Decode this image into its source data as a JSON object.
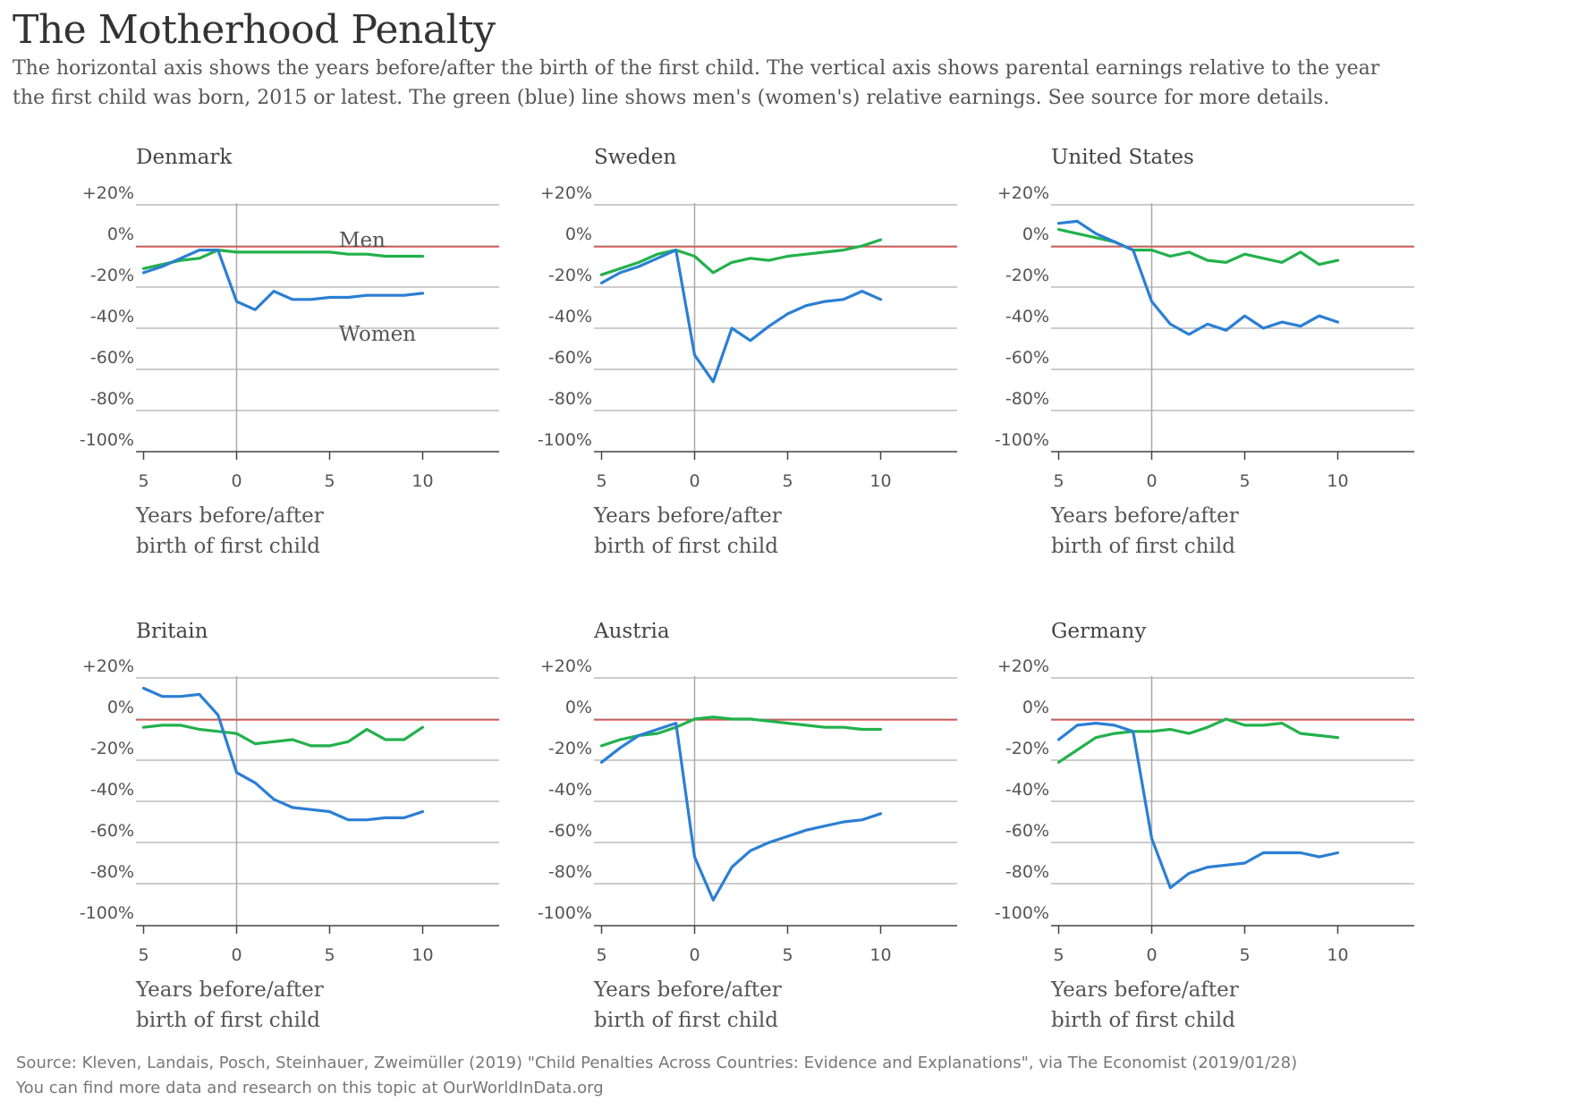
{
  "title": "The Motherhood Penalty",
  "subtitle": "The horizontal axis shows the years before/after the birth of the first child. The vertical axis shows parental earnings relative to the year the first child was born, 2015 or latest. The green (blue) line shows men's (women's) relative earnings. See source for more details.",
  "source_line1": "Source: Kleven, Landais, Posch, Steinhauer, Zweimüller (2019) \"Child Penalties Across Countries: Evidence and Explanations\", via The Economist (2019/01/28)",
  "source_line2": "You can find more data and research on this topic at OurWorldInData.org",
  "colors": {
    "men": "#22b14c",
    "women": "#2b7fd4",
    "reference": "#e53935",
    "grid": "#999999",
    "axis": "#444444"
  },
  "chart_data": [
    {
      "type": "line",
      "title": "Denmark",
      "xlabel": "Years before/after birth of first child",
      "x_ticks": [
        "5",
        "0",
        "5",
        "10"
      ],
      "y_ticks": [
        "+20%",
        "0%",
        "-20%",
        "-40%",
        "-60%",
        "-80%",
        "-100%"
      ],
      "xlim": [
        -5,
        14
      ],
      "ylim": [
        -100,
        20
      ],
      "labels": [
        "Men",
        "Women"
      ],
      "series": [
        {
          "name": "Men",
          "color": "#22b14c",
          "points": [
            [
              -5,
              -11
            ],
            [
              -4,
              -9
            ],
            [
              -3,
              -7
            ],
            [
              -2,
              -6
            ],
            [
              -1,
              -2
            ],
            [
              0,
              -3
            ],
            [
              1,
              -3
            ],
            [
              2,
              -3
            ],
            [
              3,
              -3
            ],
            [
              4,
              -3
            ],
            [
              5,
              -3
            ],
            [
              6,
              -4
            ],
            [
              7,
              -4
            ],
            [
              8,
              -5
            ],
            [
              9,
              -5
            ],
            [
              10,
              -5
            ]
          ]
        },
        {
          "name": "Women",
          "color": "#2b7fd4",
          "points": [
            [
              -5,
              -13
            ],
            [
              -4,
              -10
            ],
            [
              -3,
              -6
            ],
            [
              -2,
              -2
            ],
            [
              -1,
              -2
            ],
            [
              0,
              -27
            ],
            [
              1,
              -31
            ],
            [
              2,
              -22
            ],
            [
              3,
              -26
            ],
            [
              4,
              -26
            ],
            [
              5,
              -25
            ],
            [
              6,
              -25
            ],
            [
              7,
              -24
            ],
            [
              8,
              -24
            ],
            [
              9,
              -24
            ],
            [
              10,
              -23
            ]
          ]
        }
      ]
    },
    {
      "type": "line",
      "title": "Sweden",
      "xlabel": "Years before/after birth of first child",
      "x_ticks": [
        "5",
        "0",
        "5",
        "10"
      ],
      "y_ticks": [
        "+20%",
        "0%",
        "-20%",
        "-40%",
        "-60%",
        "-80%",
        "-100%"
      ],
      "xlim": [
        -5,
        14
      ],
      "ylim": [
        -100,
        20
      ],
      "series": [
        {
          "name": "Men",
          "color": "#22b14c",
          "points": [
            [
              -5,
              -14
            ],
            [
              -4,
              -11
            ],
            [
              -3,
              -8
            ],
            [
              -2,
              -4
            ],
            [
              -1,
              -2
            ],
            [
              0,
              -5
            ],
            [
              1,
              -13
            ],
            [
              2,
              -8
            ],
            [
              3,
              -6
            ],
            [
              4,
              -7
            ],
            [
              5,
              -5
            ],
            [
              6,
              -4
            ],
            [
              7,
              -3
            ],
            [
              8,
              -2
            ],
            [
              9,
              0
            ],
            [
              10,
              3
            ]
          ]
        },
        {
          "name": "Women",
          "color": "#2b7fd4",
          "points": [
            [
              -5,
              -18
            ],
            [
              -4,
              -13
            ],
            [
              -3,
              -10
            ],
            [
              -2,
              -6
            ],
            [
              -1,
              -2
            ],
            [
              0,
              -53
            ],
            [
              1,
              -66
            ],
            [
              2,
              -40
            ],
            [
              3,
              -46
            ],
            [
              4,
              -39
            ],
            [
              5,
              -33
            ],
            [
              6,
              -29
            ],
            [
              7,
              -27
            ],
            [
              8,
              -26
            ],
            [
              9,
              -22
            ],
            [
              10,
              -26
            ]
          ]
        }
      ]
    },
    {
      "type": "line",
      "title": "United States",
      "xlabel": "Years before/after birth of first child",
      "x_ticks": [
        "5",
        "0",
        "5",
        "10"
      ],
      "y_ticks": [
        "+20%",
        "0%",
        "-20%",
        "-40%",
        "-60%",
        "-80%",
        "-100%"
      ],
      "xlim": [
        -5,
        14
      ],
      "ylim": [
        -100,
        20
      ],
      "series": [
        {
          "name": "Men",
          "color": "#22b14c",
          "points": [
            [
              -5,
              8
            ],
            [
              -4,
              6
            ],
            [
              -3,
              4
            ],
            [
              -2,
              2
            ],
            [
              -1,
              -2
            ],
            [
              0,
              -2
            ],
            [
              1,
              -5
            ],
            [
              2,
              -3
            ],
            [
              3,
              -7
            ],
            [
              4,
              -8
            ],
            [
              5,
              -4
            ],
            [
              6,
              -6
            ],
            [
              7,
              -8
            ],
            [
              8,
              -3
            ],
            [
              9,
              -9
            ],
            [
              10,
              -7
            ]
          ]
        },
        {
          "name": "Women",
          "color": "#2b7fd4",
          "points": [
            [
              -5,
              11
            ],
            [
              -4,
              12
            ],
            [
              -3,
              6
            ],
            [
              -2,
              2
            ],
            [
              -1,
              -2
            ],
            [
              0,
              -27
            ],
            [
              1,
              -38
            ],
            [
              2,
              -43
            ],
            [
              3,
              -38
            ],
            [
              4,
              -41
            ],
            [
              5,
              -34
            ],
            [
              6,
              -40
            ],
            [
              7,
              -37
            ],
            [
              8,
              -39
            ],
            [
              9,
              -34
            ],
            [
              10,
              -37
            ]
          ]
        }
      ]
    },
    {
      "type": "line",
      "title": "Britain",
      "xlabel": "Years before/after birth of first child",
      "x_ticks": [
        "5",
        "0",
        "5",
        "10"
      ],
      "y_ticks": [
        "+20%",
        "0%",
        "-20%",
        "-40%",
        "-60%",
        "-80%",
        "-100%"
      ],
      "xlim": [
        -5,
        14
      ],
      "ylim": [
        -100,
        20
      ],
      "series": [
        {
          "name": "Men",
          "color": "#22b14c",
          "points": [
            [
              -5,
              -4
            ],
            [
              -4,
              -3
            ],
            [
              -3,
              -3
            ],
            [
              -2,
              -5
            ],
            [
              -1,
              -6
            ],
            [
              0,
              -7
            ],
            [
              1,
              -12
            ],
            [
              2,
              -11
            ],
            [
              3,
              -10
            ],
            [
              4,
              -13
            ],
            [
              5,
              -13
            ],
            [
              6,
              -11
            ],
            [
              7,
              -5
            ],
            [
              8,
              -10
            ],
            [
              9,
              -10
            ],
            [
              10,
              -4
            ]
          ]
        },
        {
          "name": "Women",
          "color": "#2b7fd4",
          "points": [
            [
              -5,
              15
            ],
            [
              -4,
              11
            ],
            [
              -3,
              11
            ],
            [
              -2,
              12
            ],
            [
              -1,
              2
            ],
            [
              0,
              -26
            ],
            [
              1,
              -31
            ],
            [
              2,
              -39
            ],
            [
              3,
              -43
            ],
            [
              4,
              -44
            ],
            [
              5,
              -45
            ],
            [
              6,
              -49
            ],
            [
              7,
              -49
            ],
            [
              8,
              -48
            ],
            [
              9,
              -48
            ],
            [
              10,
              -45
            ]
          ]
        }
      ]
    },
    {
      "type": "line",
      "title": "Austria",
      "xlabel": "Years before/after birth of first child",
      "x_ticks": [
        "5",
        "0",
        "5",
        "10"
      ],
      "y_ticks": [
        "+20%",
        "0%",
        "-20%",
        "-40%",
        "-60%",
        "-80%",
        "-100%"
      ],
      "xlim": [
        -5,
        14
      ],
      "ylim": [
        -100,
        20
      ],
      "series": [
        {
          "name": "Men",
          "color": "#22b14c",
          "points": [
            [
              -5,
              -13
            ],
            [
              -4,
              -10
            ],
            [
              -3,
              -8
            ],
            [
              -2,
              -7
            ],
            [
              -1,
              -4
            ],
            [
              0,
              0
            ],
            [
              1,
              1
            ],
            [
              2,
              0
            ],
            [
              3,
              0
            ],
            [
              4,
              -1
            ],
            [
              5,
              -2
            ],
            [
              6,
              -3
            ],
            [
              7,
              -4
            ],
            [
              8,
              -4
            ],
            [
              9,
              -5
            ],
            [
              10,
              -5
            ]
          ]
        },
        {
          "name": "Women",
          "color": "#2b7fd4",
          "points": [
            [
              -5,
              -21
            ],
            [
              -4,
              -14
            ],
            [
              -3,
              -8
            ],
            [
              -2,
              -5
            ],
            [
              -1,
              -2
            ],
            [
              0,
              -67
            ],
            [
              1,
              -88
            ],
            [
              2,
              -72
            ],
            [
              3,
              -64
            ],
            [
              4,
              -60
            ],
            [
              5,
              -57
            ],
            [
              6,
              -54
            ],
            [
              7,
              -52
            ],
            [
              8,
              -50
            ],
            [
              9,
              -49
            ],
            [
              10,
              -46
            ]
          ]
        }
      ]
    },
    {
      "type": "line",
      "title": "Germany",
      "xlabel": "Years before/after birth of first child",
      "x_ticks": [
        "5",
        "0",
        "5",
        "10"
      ],
      "y_ticks": [
        "+20%",
        "0%",
        "-20%",
        "-40%",
        "-60%",
        "-80%",
        "-100%"
      ],
      "xlim": [
        -5,
        14
      ],
      "ylim": [
        -100,
        20
      ],
      "series": [
        {
          "name": "Men",
          "color": "#22b14c",
          "points": [
            [
              -5,
              -21
            ],
            [
              -4,
              -15
            ],
            [
              -3,
              -9
            ],
            [
              -2,
              -7
            ],
            [
              -1,
              -6
            ],
            [
              0,
              -6
            ],
            [
              1,
              -5
            ],
            [
              2,
              -7
            ],
            [
              3,
              -4
            ],
            [
              4,
              0
            ],
            [
              5,
              -3
            ],
            [
              6,
              -3
            ],
            [
              7,
              -2
            ],
            [
              8,
              -7
            ],
            [
              9,
              -8
            ],
            [
              10,
              -9
            ]
          ]
        },
        {
          "name": "Women",
          "color": "#2b7fd4",
          "points": [
            [
              -5,
              -10
            ],
            [
              -4,
              -3
            ],
            [
              -3,
              -2
            ],
            [
              -2,
              -3
            ],
            [
              -1,
              -6
            ],
            [
              0,
              -58
            ],
            [
              1,
              -82
            ],
            [
              2,
              -75
            ],
            [
              3,
              -72
            ],
            [
              4,
              -71
            ],
            [
              5,
              -70
            ],
            [
              6,
              -65
            ],
            [
              7,
              -65
            ],
            [
              8,
              -65
            ],
            [
              9,
              -67
            ],
            [
              10,
              -65
            ]
          ]
        }
      ]
    }
  ]
}
